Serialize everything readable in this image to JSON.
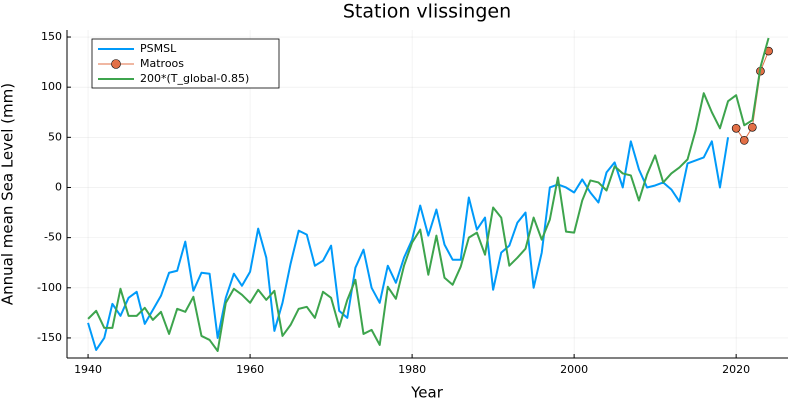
{
  "chart_data": {
    "type": "line",
    "title": "Station vlissingen",
    "xlabel": "Year",
    "ylabel": "Annual mean Sea Level (mm)",
    "xlim": [
      1937.4,
      2026.4
    ],
    "ylim": [
      -170,
      157
    ],
    "xticks": [
      1940,
      1960,
      1980,
      2000,
      2020
    ],
    "yticks": [
      -150,
      -100,
      -50,
      0,
      50,
      100,
      150
    ],
    "grid": true,
    "legend": "top-left",
    "series": [
      {
        "name": "PSMSL",
        "color": "#009af9",
        "marker": "none",
        "x": [
          1940,
          1941,
          1942,
          1943,
          1944,
          1945,
          1946,
          1947,
          1948,
          1949,
          1950,
          1951,
          1952,
          1953,
          1954,
          1955,
          1956,
          1957,
          1958,
          1959,
          1960,
          1961,
          1962,
          1963,
          1964,
          1965,
          1966,
          1967,
          1968,
          1969,
          1970,
          1971,
          1972,
          1973,
          1974,
          1975,
          1976,
          1977,
          1978,
          1979,
          1980,
          1981,
          1982,
          1983,
          1984,
          1985,
          1986,
          1987,
          1988,
          1989,
          1990,
          1991,
          1992,
          1993,
          1994,
          1995,
          1996,
          1997,
          1998,
          1999,
          2000,
          2001,
          2002,
          2003,
          2004,
          2005,
          2006,
          2007,
          2008,
          2009,
          2010,
          2011,
          2012,
          2013,
          2014,
          2015,
          2016,
          2017,
          2018,
          2019
        ],
        "values": [
          -135,
          -162,
          -150,
          -116,
          -128,
          -110,
          -104,
          -136,
          -122,
          -108,
          -85,
          -83,
          -54,
          -103,
          -85,
          -86,
          -150,
          -110,
          -86,
          -98,
          -84,
          -41,
          -70,
          -143,
          -115,
          -76,
          -43,
          -47,
          -78,
          -73,
          -58,
          -123,
          -130,
          -80,
          -62,
          -100,
          -115,
          -78,
          -95,
          -70,
          -52,
          -18,
          -48,
          -22,
          -57,
          -72,
          -72,
          -10,
          -42,
          -30,
          -102,
          -65,
          -58,
          -35,
          -25,
          -100,
          -65,
          0,
          3,
          0,
          -5,
          8,
          -5,
          -15,
          15,
          25,
          0,
          46,
          18,
          0,
          2,
          5,
          -2,
          -14,
          24,
          27,
          30,
          46,
          0,
          50
        ]
      },
      {
        "name": "Matroos",
        "color": "#e26f46",
        "marker": "circle",
        "x": [
          2020,
          2021,
          2022,
          2023,
          2024
        ],
        "values": [
          59,
          47,
          60,
          116,
          136
        ]
      },
      {
        "name": "200*(T_global-0.85)",
        "color": "#3da44d",
        "marker": "none",
        "x": [
          1940,
          1941,
          1942,
          1943,
          1944,
          1945,
          1946,
          1947,
          1948,
          1949,
          1950,
          1951,
          1952,
          1953,
          1954,
          1955,
          1956,
          1957,
          1958,
          1959,
          1960,
          1961,
          1962,
          1963,
          1964,
          1965,
          1966,
          1967,
          1968,
          1969,
          1970,
          1971,
          1972,
          1973,
          1974,
          1975,
          1976,
          1977,
          1978,
          1979,
          1980,
          1981,
          1982,
          1983,
          1984,
          1985,
          1986,
          1987,
          1988,
          1989,
          1990,
          1991,
          1992,
          1993,
          1994,
          1995,
          1996,
          1997,
          1998,
          1999,
          2000,
          2001,
          2002,
          2003,
          2004,
          2005,
          2006,
          2007,
          2008,
          2009,
          2010,
          2011,
          2012,
          2013,
          2014,
          2015,
          2016,
          2017,
          2018,
          2019,
          2020,
          2021,
          2022,
          2023,
          2024
        ],
        "values": [
          -131,
          -123,
          -140,
          -140,
          -101,
          -128,
          -128,
          -120,
          -132,
          -124,
          -146,
          -121,
          -124,
          -109,
          -148,
          -152,
          -163,
          -115,
          -101,
          -107,
          -115,
          -102,
          -112,
          -103,
          -148,
          -137,
          -121,
          -119,
          -130,
          -104,
          -110,
          -139,
          -112,
          -92,
          -146,
          -142,
          -157,
          -99,
          -111,
          -78,
          -55,
          -42,
          -87,
          -48,
          -90,
          -97,
          -79,
          -50,
          -45,
          -67,
          -20,
          -30,
          -78,
          -70,
          -61,
          -30,
          -52,
          -32,
          10,
          -44,
          -45,
          -13,
          7,
          5,
          -3,
          21,
          14,
          12,
          -13,
          13,
          32,
          5,
          14,
          20,
          28,
          57,
          94,
          75,
          59,
          86,
          92,
          62,
          67,
          120,
          149
        ]
      }
    ]
  }
}
